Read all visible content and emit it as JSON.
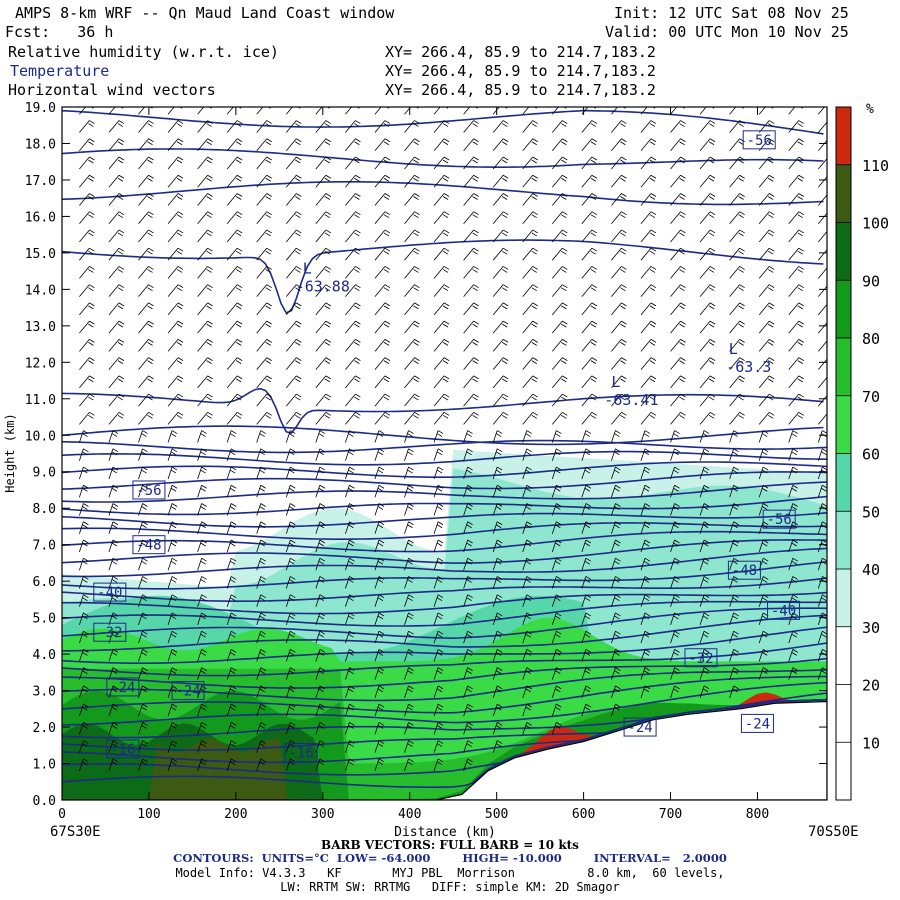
{
  "header": {
    "title": "AMPS 8-km WRF -- Qn Maud Land Coast window",
    "init": "Init: 12 UTC Sat 08 Nov 25",
    "fcst": "Fcst:   36 h",
    "valid": "Valid: 00 UTC Mon 10 Nov 25",
    "fields": [
      {
        "name": "Relative humidity (w.r.t. ice)",
        "xy": "XY= 266.4, 85.9 to 214.7,183.2",
        "color": "#000000"
      },
      {
        "name": "Temperature",
        "xy": "XY= 266.4, 85.9 to 214.7,183.2",
        "color": "#1c2a8a"
      },
      {
        "name": "Horizontal wind vectors",
        "xy": "XY= 266.4, 85.9 to 214.7,183.2",
        "color": "#000000"
      }
    ]
  },
  "chart_data": {
    "type": "heatmap",
    "xlabel": "Distance (km)",
    "ylabel": "Height (km)",
    "xlim": [
      0,
      880
    ],
    "ylim": [
      0,
      19
    ],
    "x_ticks": [
      0,
      100,
      200,
      300,
      400,
      500,
      600,
      700,
      800
    ],
    "y_ticks": [
      "0.0",
      "1.0",
      "2.0",
      "3.0",
      "4.0",
      "5.0",
      "6.0",
      "7.0",
      "8.0",
      "9.0",
      "10.0",
      "11.0",
      "12.0",
      "13.0",
      "14.0",
      "15.0",
      "16.0",
      "17.0",
      "18.0",
      "19.0"
    ],
    "x_endpoints": {
      "left": "67S30E",
      "right": "70S50E"
    },
    "colorbar": {
      "unit": "%",
      "levels": [
        10,
        20,
        30,
        40,
        50,
        60,
        70,
        80,
        90,
        100,
        110
      ],
      "colors": [
        "#ffffff",
        "#ffffff",
        "#ffffff",
        "#c8f2e8",
        "#8ee6cf",
        "#57d7a9",
        "#3bdb48",
        "#28bd2c",
        "#139a1c",
        "#0d6a17",
        "#3d5a12",
        "#cc2a0e"
      ]
    },
    "terrain_km": [
      [
        0,
        0
      ],
      [
        430,
        0
      ],
      [
        460,
        0.15
      ],
      [
        490,
        0.8
      ],
      [
        520,
        1.15
      ],
      [
        560,
        1.4
      ],
      [
        600,
        1.6
      ],
      [
        640,
        1.9
      ],
      [
        680,
        2.2
      ],
      [
        720,
        2.35
      ],
      [
        780,
        2.5
      ],
      [
        820,
        2.65
      ],
      [
        880,
        2.7
      ]
    ],
    "temperature_contours": {
      "units": "°C",
      "low": -64.0,
      "high": -10.0,
      "interval": 2.0,
      "labels": [
        {
          "text": "-56",
          "x": 802,
          "y": 18.1
        },
        {
          "text": "-56",
          "x": 100,
          "y": 8.5
        },
        {
          "text": "-56",
          "x": 825,
          "y": 7.7
        },
        {
          "text": "-48",
          "x": 100,
          "y": 7.0
        },
        {
          "text": "-48",
          "x": 785,
          "y": 6.3
        },
        {
          "text": "-40",
          "x": 55,
          "y": 5.7
        },
        {
          "text": "-40",
          "x": 830,
          "y": 5.2
        },
        {
          "text": "-32",
          "x": 55,
          "y": 4.6
        },
        {
          "text": "-32",
          "x": 735,
          "y": 3.9
        },
        {
          "text": "-24",
          "x": 70,
          "y": 3.1
        },
        {
          "text": "-24",
          "x": 145,
          "y": 3.0
        },
        {
          "text": "-24",
          "x": 665,
          "y": 2.0
        },
        {
          "text": "-24",
          "x": 800,
          "y": 2.1
        },
        {
          "text": "-16",
          "x": 70,
          "y": 1.4
        },
        {
          "text": "-16",
          "x": 275,
          "y": 1.3
        }
      ],
      "lows": [
        {
          "text": "-63.88",
          "label": "L",
          "x": 300,
          "y": 14.1
        },
        {
          "text": "-63.41",
          "label": "L",
          "x": 655,
          "y": 11.0
        },
        {
          "text": "-63.3",
          "label": "L",
          "x": 790,
          "y": 11.9
        }
      ]
    }
  },
  "footer": {
    "barb": "BARB VECTORS: FULL BARB = 10 kts",
    "contours": "CONTOURS:  UNITS=°C  LOW= -64.000        HIGH= -10.000        INTERVAL=   2.0000",
    "model1": "Model Info: V4.3.3   KF       MYJ PBL  Morrison          8.0 km,  60 levels,",
    "model2": "LW: RRTM SW: RRTMG   DIFF: simple KM: 2D Smagor"
  },
  "colors": {
    "contour": "#1c2a8a",
    "terrain": "#ffffff",
    "frame": "#000000"
  }
}
